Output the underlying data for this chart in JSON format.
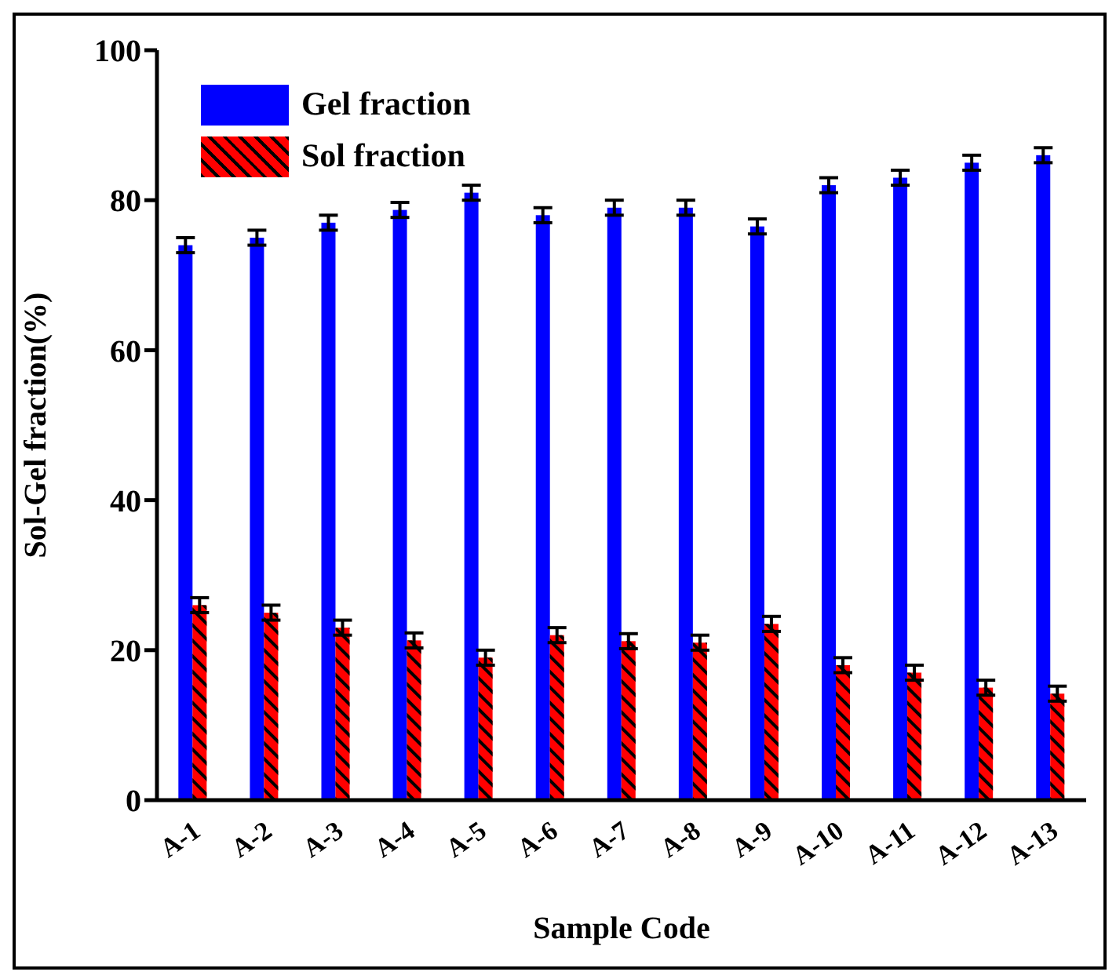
{
  "chart_data": {
    "type": "bar",
    "xlabel": "Sample Code",
    "ylabel": "Sol-Gel fraction(%)",
    "categories": [
      "A-1",
      "A-2",
      "A-3",
      "A-4",
      "A-5",
      "A-6",
      "A-7",
      "A-8",
      "A-9",
      "A-10",
      "A-11",
      "A-12",
      "A-13"
    ],
    "series": [
      {
        "name": "Gel fraction",
        "color": "#0000ff",
        "values": [
          74,
          75,
          77,
          78.7,
          81,
          78,
          79,
          79,
          76.5,
          82,
          83,
          85,
          86
        ],
        "errors": [
          1,
          1,
          1,
          1,
          1,
          1,
          1,
          1,
          1,
          1,
          1,
          1,
          1
        ]
      },
      {
        "name": "Sol fraction",
        "color": "#ff0000",
        "values": [
          26,
          25,
          23,
          21.3,
          19,
          22,
          21.2,
          21,
          23.5,
          18,
          17,
          15,
          14.2
        ],
        "errors": [
          1,
          1,
          1,
          1,
          1,
          1,
          1,
          1,
          1,
          1,
          1,
          1,
          1
        ]
      }
    ],
    "ylim": [
      0,
      100
    ],
    "yticks": [
      0,
      20,
      40,
      60,
      80,
      100
    ],
    "grid": false,
    "legend": "top left"
  }
}
